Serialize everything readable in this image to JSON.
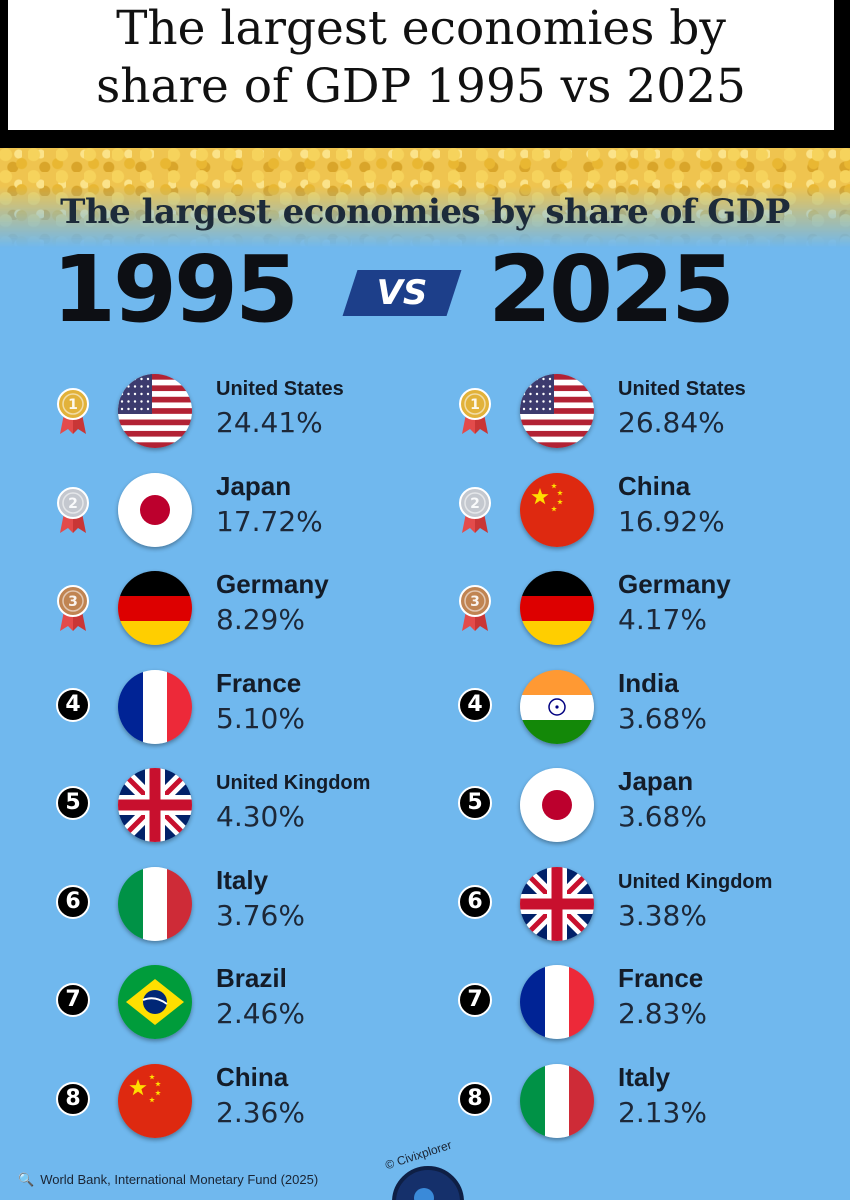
{
  "header": {
    "line1": "The largest economies by",
    "line2": "share of GDP 1995 vs 2025"
  },
  "infographic": {
    "subtitle": "The largest economies by share of GDP",
    "year_left": "1995",
    "vs_label": "VS",
    "year_right": "2025",
    "source": "World Bank, International Monetary Fund (2025)",
    "credit": "© Civixplorer"
  },
  "colors": {
    "background": "#70b8ee",
    "gold": "#e2b23a",
    "silver": "#c4c8cf",
    "bronze": "#c08452",
    "vs_badge": "#1d3f8a"
  },
  "chart_data": {
    "type": "table",
    "title": "The largest economies by share of GDP",
    "unit": "% of world GDP",
    "columns": [
      {
        "year": "1995",
        "rows": [
          {
            "rank": "1",
            "country": "United States",
            "share": "24.41%",
            "value": 24.41,
            "flag": "us-flag-icon"
          },
          {
            "rank": "2",
            "country": "Japan",
            "share": "17.72%",
            "value": 17.72,
            "flag": "japan-flag-icon"
          },
          {
            "rank": "3",
            "country": "Germany",
            "share": "8.29%",
            "value": 8.29,
            "flag": "germany-flag-icon"
          },
          {
            "rank": "4",
            "country": "France",
            "share": "5.10%",
            "value": 5.1,
            "flag": "france-flag-icon"
          },
          {
            "rank": "5",
            "country": "United Kingdom",
            "share": "4.30%",
            "value": 4.3,
            "flag": "uk-flag-icon"
          },
          {
            "rank": "6",
            "country": "Italy",
            "share": "3.76%",
            "value": 3.76,
            "flag": "italy-flag-icon"
          },
          {
            "rank": "7",
            "country": "Brazil",
            "share": "2.46%",
            "value": 2.46,
            "flag": "brazil-flag-icon"
          },
          {
            "rank": "8",
            "country": "China",
            "share": "2.36%",
            "value": 2.36,
            "flag": "china-flag-icon"
          }
        ]
      },
      {
        "year": "2025",
        "rows": [
          {
            "rank": "1",
            "country": "United States",
            "share": "26.84%",
            "value": 26.84,
            "flag": "us-flag-icon"
          },
          {
            "rank": "2",
            "country": "China",
            "share": "16.92%",
            "value": 16.92,
            "flag": "china-flag-icon"
          },
          {
            "rank": "3",
            "country": "Germany",
            "share": "4.17%",
            "value": 4.17,
            "flag": "germany-flag-icon"
          },
          {
            "rank": "4",
            "country": "India",
            "share": "3.68%",
            "value": 3.68,
            "flag": "india-flag-icon"
          },
          {
            "rank": "5",
            "country": "Japan",
            "share": "3.68%",
            "value": 3.68,
            "flag": "japan-flag-icon"
          },
          {
            "rank": "6",
            "country": "United Kingdom",
            "share": "3.38%",
            "value": 3.38,
            "flag": "uk-flag-icon"
          },
          {
            "rank": "7",
            "country": "France",
            "share": "2.83%",
            "value": 2.83,
            "flag": "france-flag-icon"
          },
          {
            "rank": "8",
            "country": "Italy",
            "share": "2.13%",
            "value": 2.13,
            "flag": "italy-flag-icon"
          }
        ]
      }
    ]
  }
}
